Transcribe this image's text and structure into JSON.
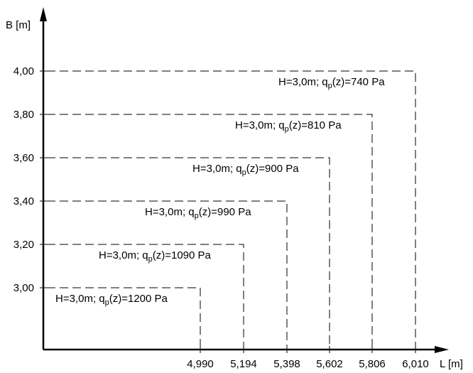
{
  "y_axis": {
    "label": "B [m]",
    "ticks": [
      "3,00",
      "3,20",
      "3,40",
      "3,60",
      "3,80",
      "4,00"
    ]
  },
  "x_axis": {
    "label": "L [m]",
    "ticks": [
      "4,990",
      "5,194",
      "5,398",
      "5,602",
      "5,806",
      "6,010"
    ]
  },
  "regions": [
    {
      "B": 3.0,
      "L": 4.99,
      "h_text": "H=3,0m; q",
      "sub": "p",
      "tail": "(z)=1200 Pa"
    },
    {
      "B": 3.2,
      "L": 5.194,
      "h_text": "H=3,0m; q",
      "sub": "p",
      "tail": "(z)=1090 Pa"
    },
    {
      "B": 3.4,
      "L": 5.398,
      "h_text": "H=3,0m;  q",
      "sub": "p",
      "tail": "(z)=990 Pa"
    },
    {
      "B": 3.6,
      "L": 5.602,
      "h_text": "H=3,0m; q",
      "sub": "p",
      "tail": "(z)=900 Pa"
    },
    {
      "B": 3.8,
      "L": 5.806,
      "h_text": "H=3,0m; q",
      "sub": "p",
      "tail": "(z)=810 Pa"
    },
    {
      "B": 4.0,
      "L": 6.01,
      "h_text": "H=3,0m; q",
      "sub": "p",
      "tail": "(z)=740 Pa"
    }
  ]
}
